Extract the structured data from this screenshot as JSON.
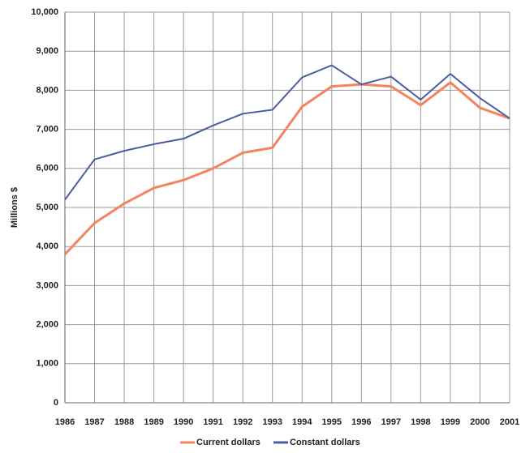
{
  "chart_data": {
    "type": "line",
    "y_label": "Millions $",
    "categories": [
      "1986",
      "1987",
      "1988",
      "1989",
      "1990",
      "1991",
      "1992",
      "1993",
      "1994",
      "1995",
      "1996",
      "1997",
      "1998",
      "1999",
      "2000",
      "2001"
    ],
    "series": [
      {
        "name": "Current dollars",
        "color": "#f4845f",
        "values": [
          3800,
          4600,
          5100,
          5500,
          5700,
          6000,
          6400,
          6530,
          7580,
          8100,
          8150,
          8100,
          7620,
          8200,
          7550,
          7280
        ]
      },
      {
        "name": "Constant dollars",
        "color": "#4a5e9e",
        "values": [
          5200,
          6230,
          6450,
          6620,
          6760,
          7100,
          7400,
          7500,
          8330,
          8640,
          8150,
          8350,
          7760,
          8420,
          7800,
          7280
        ]
      }
    ],
    "ylim": [
      0,
      10000
    ],
    "yticks": [
      0,
      {
        "value": 1000,
        "label": "1,000"
      },
      {
        "value": 2000,
        "label": "2,000"
      },
      {
        "value": 3000,
        "label": "3,000"
      },
      {
        "value": 4000,
        "label": "4,000"
      },
      {
        "value": 5000,
        "label": "5,000"
      },
      {
        "value": 6000,
        "label": "6,000"
      },
      {
        "value": 7000,
        "label": "7,000"
      },
      {
        "value": 8000,
        "label": "8,000"
      },
      {
        "value": 9000,
        "label": "9,000"
      },
      {
        "value": 10000,
        "label": "10,000"
      }
    ],
    "grid": true,
    "legend": "bottom"
  }
}
